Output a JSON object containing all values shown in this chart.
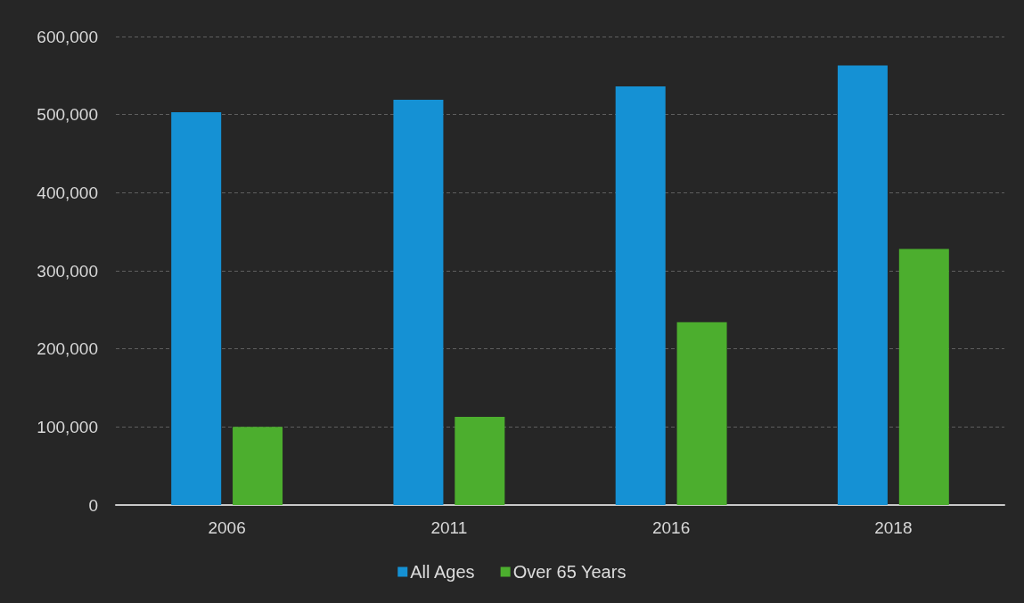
{
  "chart_data": {
    "type": "bar",
    "categories": [
      "2006",
      "2011",
      "2016",
      "2018"
    ],
    "series": [
      {
        "name": "All Ages",
        "color": "#1591d4",
        "values": [
          503000,
          519000,
          536000,
          563000
        ]
      },
      {
        "name": "Over 65 Years",
        "color": "#4cae2e",
        "values": [
          100000,
          113000,
          234000,
          328000
        ]
      }
    ],
    "ylim": [
      0,
      600000
    ],
    "yticks": [
      {
        "value": 0,
        "label": "0"
      },
      {
        "value": 100000,
        "label": "100,000"
      },
      {
        "value": 200000,
        "label": "200,000"
      },
      {
        "value": 300000,
        "label": "300,000"
      },
      {
        "value": 400000,
        "label": "400,000"
      },
      {
        "value": 500000,
        "label": "500,000"
      },
      {
        "value": 600000,
        "label": "600,000"
      }
    ],
    "grid": "y",
    "legend": "bottom"
  }
}
